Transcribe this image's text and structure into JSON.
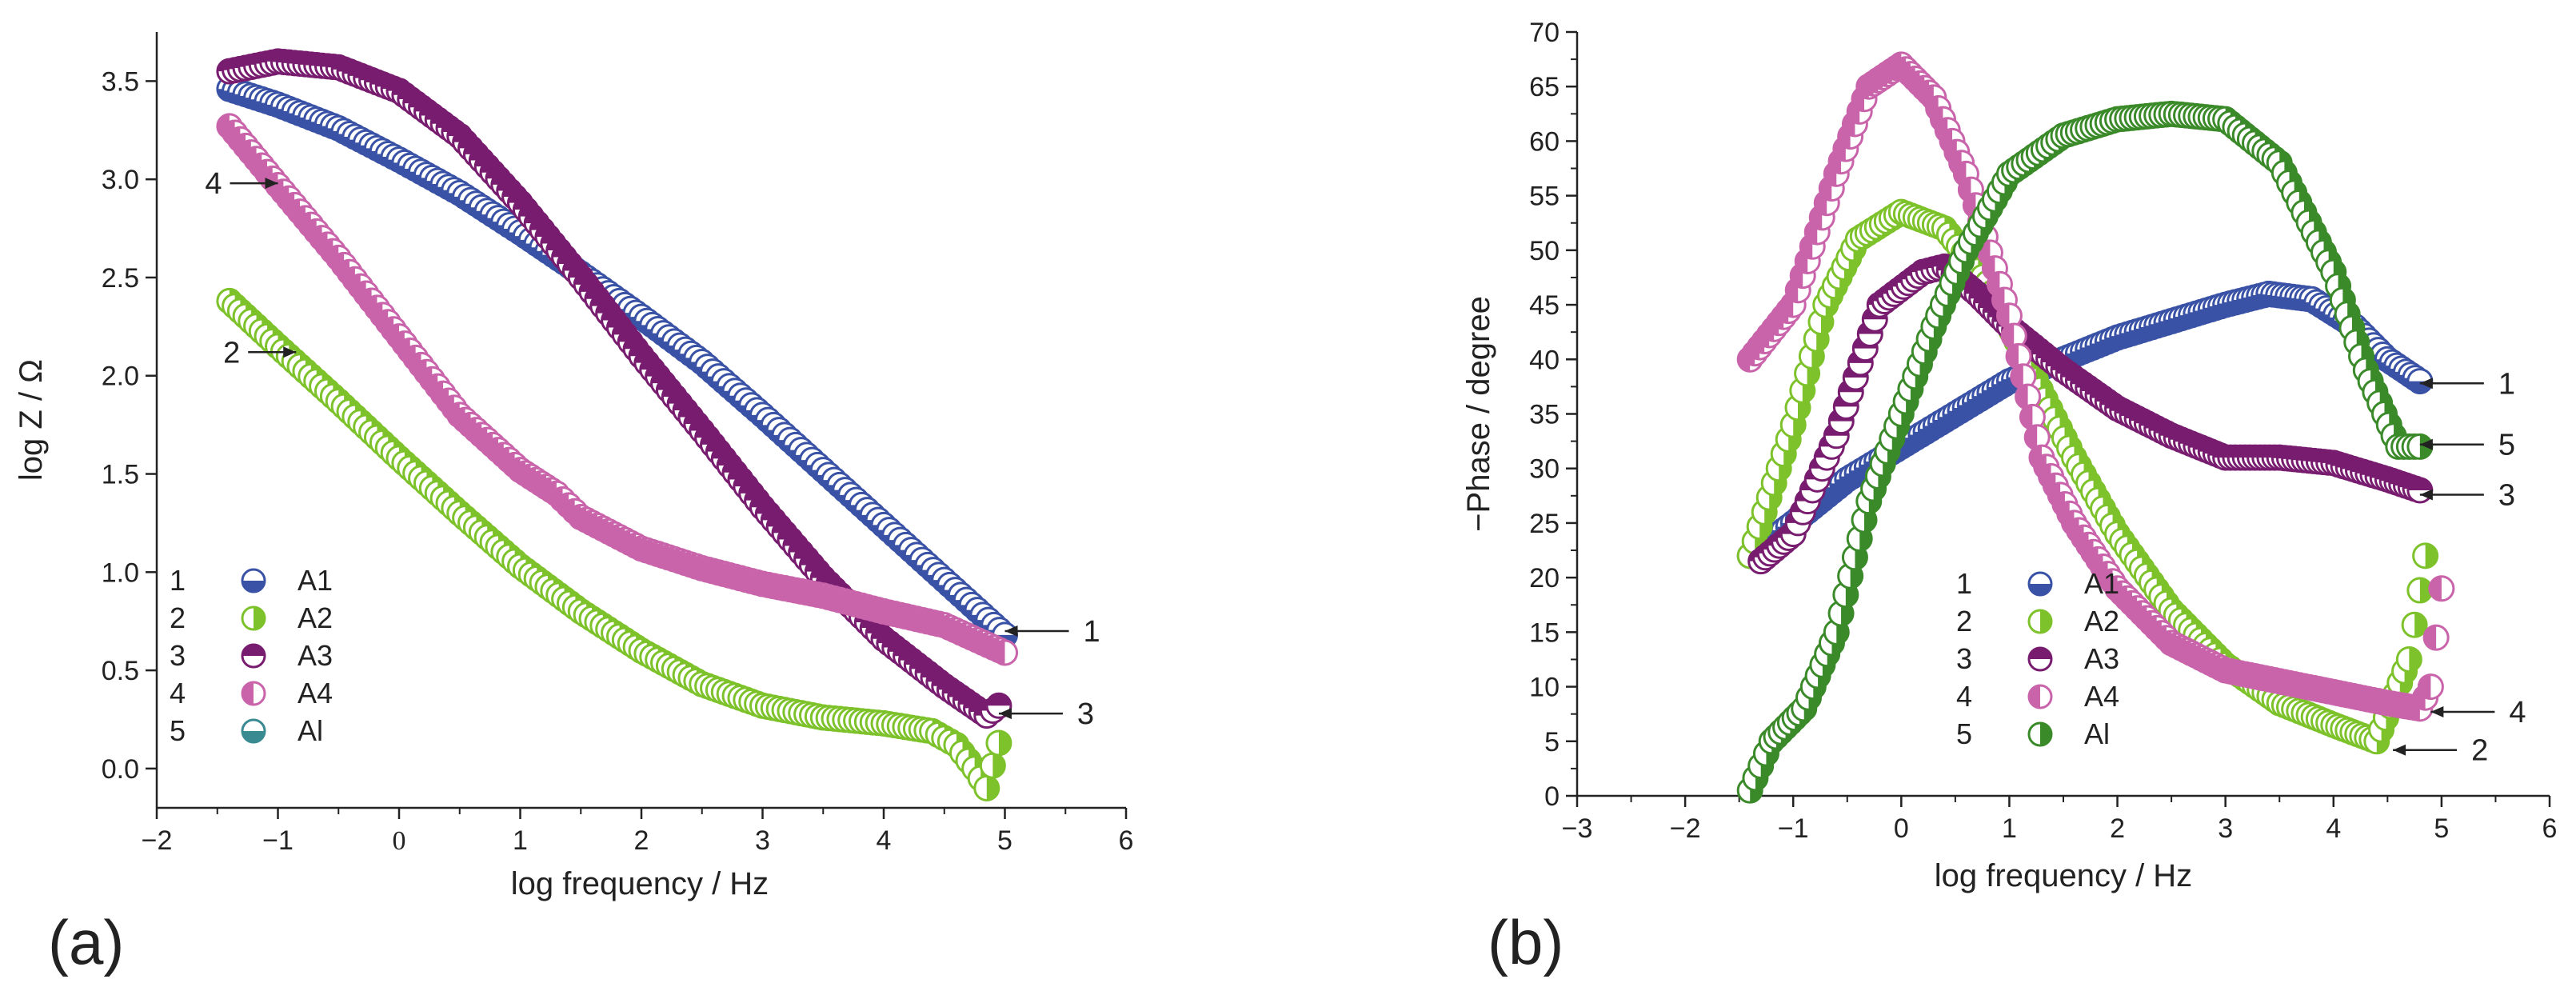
{
  "chart_data": [
    {
      "type": "scatter",
      "panel_label": "(a)",
      "xlabel": "log frequency / Hz",
      "ylabel": "log Z / Ω",
      "xlim": [
        -2,
        6
      ],
      "ylim": [
        -0.2,
        3.75
      ],
      "xticks": [
        {
          "value": -2,
          "label": "−2"
        },
        {
          "value": -1,
          "label": "−1"
        },
        {
          "value": 0,
          "label": "0"
        },
        {
          "value": 1,
          "label": "1"
        },
        {
          "value": 2,
          "label": "2"
        },
        {
          "value": 3,
          "label": "3"
        },
        {
          "value": 4,
          "label": "4"
        },
        {
          "value": 5,
          "label": "5"
        },
        {
          "value": 6,
          "label": "6"
        }
      ],
      "yticks": [
        {
          "value": 0.0,
          "label": "0.0"
        },
        {
          "value": 0.5,
          "label": "0.5"
        },
        {
          "value": 1.0,
          "label": "1.0"
        },
        {
          "value": 1.5,
          "label": "1.5"
        },
        {
          "value": 2.0,
          "label": "2.0"
        },
        {
          "value": 2.5,
          "label": "2.5"
        },
        {
          "value": 3.0,
          "label": "3.0"
        },
        {
          "value": 3.5,
          "label": "3.5"
        }
      ],
      "legend": {
        "position": "bottom-left"
      },
      "series": [
        {
          "id": "1",
          "name": "A1",
          "color": "#3a52a6",
          "marker": "half-bottom",
          "x": [
            -1.4,
            -1.0,
            -0.5,
            0,
            0.5,
            1.0,
            1.5,
            2.0,
            2.5,
            3.0,
            3.5,
            4.0,
            4.5,
            5.0
          ],
          "y": [
            3.46,
            3.38,
            3.26,
            3.1,
            2.93,
            2.73,
            2.52,
            2.3,
            2.07,
            1.8,
            1.52,
            1.24,
            0.96,
            0.68
          ]
        },
        {
          "id": "2",
          "name": "A2",
          "color": "#7dc22a",
          "marker": "half-right",
          "x": [
            -1.4,
            -1.0,
            -0.5,
            0,
            0.5,
            1.0,
            1.5,
            2.0,
            2.5,
            3.0,
            3.5,
            4.0,
            4.4,
            4.6,
            4.75,
            4.85,
            4.95
          ],
          "y": [
            2.38,
            2.15,
            1.87,
            1.58,
            1.3,
            1.03,
            0.8,
            0.6,
            0.43,
            0.32,
            0.26,
            0.23,
            0.19,
            0.12,
            0.0,
            -0.1,
            0.13
          ]
        },
        {
          "id": "3",
          "name": "A3",
          "color": "#781c6f",
          "marker": "half-top",
          "x": [
            -1.4,
            -1.0,
            -0.5,
            0,
            0.5,
            1.0,
            1.5,
            2.0,
            2.5,
            3.0,
            3.5,
            4.0,
            4.5,
            4.85,
            4.95
          ],
          "y": [
            3.55,
            3.6,
            3.57,
            3.45,
            3.22,
            2.88,
            2.5,
            2.1,
            1.72,
            1.33,
            0.97,
            0.66,
            0.42,
            0.27,
            0.32
          ]
        },
        {
          "id": "4",
          "name": "A4",
          "color": "#c964ab",
          "marker": "half-left",
          "x": [
            -1.4,
            -1.0,
            -0.5,
            0,
            0.5,
            1.0,
            1.3,
            1.5,
            2.0,
            2.5,
            3.0,
            3.5,
            4.0,
            4.5,
            5.0
          ],
          "y": [
            3.27,
            2.97,
            2.6,
            2.2,
            1.8,
            1.52,
            1.4,
            1.28,
            1.12,
            1.02,
            0.94,
            0.88,
            0.8,
            0.73,
            0.59
          ]
        }
      ],
      "legend_entries": [
        {
          "id": "1",
          "name": "A1",
          "color": "#3a52a6",
          "marker": "half-bottom"
        },
        {
          "id": "2",
          "name": "A2",
          "color": "#7dc22a",
          "marker": "half-right"
        },
        {
          "id": "3",
          "name": "A3",
          "color": "#781c6f",
          "marker": "half-top"
        },
        {
          "id": "4",
          "name": "A4",
          "color": "#c964ab",
          "marker": "half-left"
        },
        {
          "id": "5",
          "name": "Al",
          "color": "#3a8a91",
          "marker": "half-bottom"
        }
      ],
      "annotations": [
        {
          "label": "4",
          "x": -1.0,
          "y": 2.98
        },
        {
          "label": "2",
          "x": -0.85,
          "y": 2.12
        },
        {
          "label": "1",
          "x": 5.0,
          "y": 0.7
        },
        {
          "label": "3",
          "x": 4.95,
          "y": 0.28
        }
      ]
    },
    {
      "type": "scatter",
      "panel_label": "(b)",
      "xlabel": "log frequency / Hz",
      "ylabel": "−Phase / degree",
      "xlim": [
        -3,
        6
      ],
      "ylim": [
        0,
        70
      ],
      "xticks": [
        {
          "value": -3,
          "label": "−3"
        },
        {
          "value": -2,
          "label": "−2"
        },
        {
          "value": -1,
          "label": "−1"
        },
        {
          "value": 0,
          "label": "0"
        },
        {
          "value": 1,
          "label": "1"
        },
        {
          "value": 2,
          "label": "2"
        },
        {
          "value": 3,
          "label": "3"
        },
        {
          "value": 4,
          "label": "4"
        },
        {
          "value": 5,
          "label": "5"
        },
        {
          "value": 6,
          "label": "6"
        }
      ],
      "yticks": [
        {
          "value": 0,
          "label": "0"
        },
        {
          "value": 5,
          "label": "5"
        },
        {
          "value": 10,
          "label": "10"
        },
        {
          "value": 15,
          "label": "15"
        },
        {
          "value": 20,
          "label": "20"
        },
        {
          "value": 25,
          "label": "25"
        },
        {
          "value": 30,
          "label": "30"
        },
        {
          "value": 35,
          "label": "35"
        },
        {
          "value": 40,
          "label": "40"
        },
        {
          "value": 45,
          "label": "45"
        },
        {
          "value": 50,
          "label": "50"
        },
        {
          "value": 55,
          "label": "55"
        },
        {
          "value": 60,
          "label": "60"
        },
        {
          "value": 65,
          "label": "65"
        },
        {
          "value": 70,
          "label": "70"
        }
      ],
      "legend": {
        "position": "bottom-center"
      },
      "series": [
        {
          "id": "1",
          "name": "A1",
          "color": "#3a52a6",
          "marker": "half-bottom",
          "x": [
            -1.4,
            -1.0,
            -0.5,
            0,
            0.5,
            1.0,
            1.5,
            2.0,
            2.5,
            3.0,
            3.4,
            3.8,
            4.2,
            4.5,
            4.8
          ],
          "y": [
            22,
            25,
            29,
            32,
            35,
            38,
            40,
            42,
            43.5,
            45,
            46,
            45.5,
            43,
            40,
            38
          ]
        },
        {
          "id": "2",
          "name": "A2",
          "color": "#7dc22a",
          "marker": "half-right",
          "x": [
            -1.4,
            -1.0,
            -0.7,
            -0.4,
            0,
            0.4,
            0.8,
            1.2,
            1.6,
            2.0,
            2.5,
            3.0,
            3.5,
            4.0,
            4.4,
            4.7,
            4.85
          ],
          "y": [
            22,
            34,
            45,
            51,
            53.5,
            52,
            47,
            39,
            31,
            24,
            17,
            12,
            8.5,
            6.5,
            5,
            12.5,
            22
          ]
        },
        {
          "id": "3",
          "name": "A3",
          "color": "#781c6f",
          "marker": "half-top",
          "x": [
            -1.3,
            -1.0,
            -0.6,
            -0.2,
            0.2,
            0.4,
            0.7,
            1.0,
            1.5,
            2.0,
            2.5,
            3.0,
            3.5,
            4.0,
            4.5,
            4.8
          ],
          "y": [
            21.5,
            24,
            33,
            45,
            48,
            48.5,
            46,
            43,
            39,
            35.5,
            33,
            31,
            31,
            30.5,
            29,
            28
          ]
        },
        {
          "id": "4",
          "name": "A4",
          "color": "#c964ab",
          "marker": "half-left",
          "x": [
            -1.4,
            -1.0,
            -0.6,
            -0.3,
            0,
            0.3,
            0.6,
            1.0,
            1.3,
            1.6,
            2.0,
            2.5,
            3.0,
            3.5,
            4.0,
            4.5,
            4.8,
            4.9,
            5.0
          ],
          "y": [
            40,
            45,
            57,
            65,
            67,
            64,
            57,
            44,
            31,
            25,
            19,
            14,
            11.5,
            10.5,
            9.5,
            8.5,
            8,
            10,
            19
          ]
        },
        {
          "id": "5",
          "name": "Al",
          "color": "#3b8a2a",
          "marker": "half-right",
          "x": [
            -1.4,
            -1.2,
            -0.9,
            -0.6,
            -0.3,
            0,
            0.3,
            0.6,
            1.0,
            1.5,
            2.0,
            2.5,
            3.0,
            3.5,
            4.0,
            4.3,
            4.6,
            4.8
          ],
          "y": [
            0.5,
            5,
            8,
            15,
            27,
            35,
            43,
            50,
            57,
            60.5,
            62,
            62.5,
            62,
            58,
            48,
            39,
            32,
            32
          ]
        }
      ],
      "legend_entries": [
        {
          "id": "1",
          "name": "A1",
          "color": "#3a52a6",
          "marker": "half-bottom"
        },
        {
          "id": "2",
          "name": "A2",
          "color": "#7dc22a",
          "marker": "half-right"
        },
        {
          "id": "3",
          "name": "A3",
          "color": "#781c6f",
          "marker": "half-top"
        },
        {
          "id": "4",
          "name": "A4",
          "color": "#c964ab",
          "marker": "half-left"
        },
        {
          "id": "5",
          "name": "Al",
          "color": "#3b8a2a",
          "marker": "half-right"
        }
      ],
      "annotations": [
        {
          "label": "1",
          "x": 4.8,
          "y": 37.8
        },
        {
          "label": "5",
          "x": 4.8,
          "y": 32.2
        },
        {
          "label": "3",
          "x": 4.8,
          "y": 27.6
        },
        {
          "label": "4",
          "x": 4.9,
          "y": 7.7
        },
        {
          "label": "2",
          "x": 4.55,
          "y": 4.2
        }
      ]
    }
  ]
}
